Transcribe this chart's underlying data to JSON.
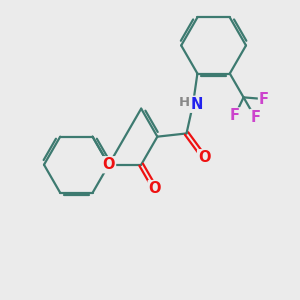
{
  "bg_color": "#ebebeb",
  "bond_color": "#3d7a70",
  "bond_width": 1.6,
  "dbo": 0.08,
  "atom_colors": {
    "O": "#ee1111",
    "N": "#2222ee",
    "F": "#cc44cc",
    "H": "#888888"
  },
  "font_size": 10.5,
  "fig_size": [
    3.0,
    3.0
  ],
  "dpi": 100
}
